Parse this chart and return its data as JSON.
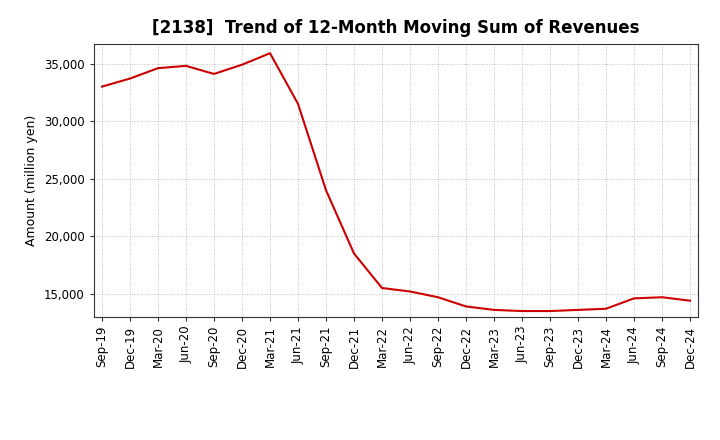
{
  "title": "[2138]  Trend of 12-Month Moving Sum of Revenues",
  "ylabel": "Amount (million yen)",
  "background_color": "#ffffff",
  "grid_color": "#aaaaaa",
  "line_color": "#cc0000",
  "x_labels": [
    "Sep-19",
    "Dec-19",
    "Mar-20",
    "Jun-20",
    "Sep-20",
    "Dec-20",
    "Mar-21",
    "Jun-21",
    "Sep-21",
    "Dec-21",
    "Mar-22",
    "Jun-22",
    "Sep-22",
    "Dec-22",
    "Mar-23",
    "Jun-23",
    "Sep-23",
    "Dec-23",
    "Mar-24",
    "Jun-24",
    "Sep-24",
    "Dec-24"
  ],
  "values": [
    33000,
    33700,
    34600,
    34800,
    34100,
    34900,
    35900,
    31500,
    24000,
    18500,
    15500,
    15200,
    14700,
    13900,
    13600,
    13500,
    13500,
    13600,
    13700,
    14600,
    14700,
    14400
  ],
  "ylim": [
    13000,
    36700
  ],
  "yticks": [
    15000,
    20000,
    25000,
    30000,
    35000
  ],
  "title_fontsize": 12,
  "axis_fontsize": 9,
  "tick_fontsize": 8.5
}
